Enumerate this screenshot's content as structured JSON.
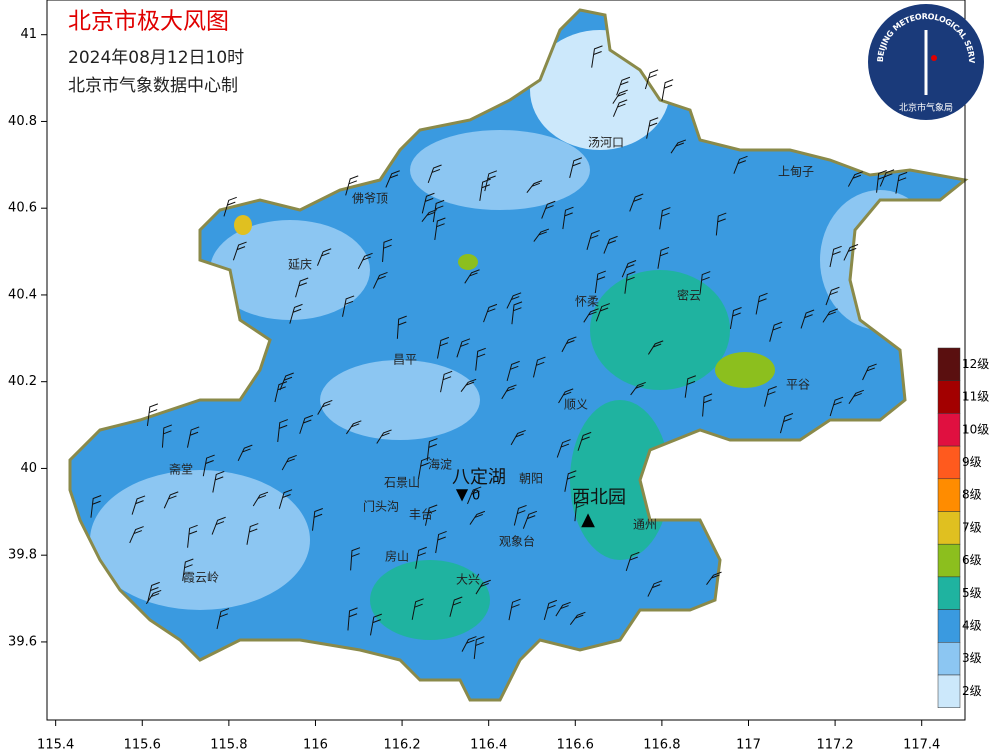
{
  "header": {
    "title": "北京市极大风图",
    "subtitle": "2024年08月12日10时",
    "agency": "北京市气象数据中心制"
  },
  "logo": {
    "ring": "BEIJING METEOROLOGICAL SERVICE",
    "name": "北京市气象局"
  },
  "map": {
    "xlim": [
      115.38,
      117.5
    ],
    "ylim": [
      39.42,
      41.08
    ],
    "xticks": [
      115.4,
      115.6,
      115.8,
      116,
      116.2,
      116.4,
      116.6,
      116.8,
      117,
      117.2,
      117.4
    ],
    "yticks": [
      39.6,
      39.8,
      40,
      40.2,
      40.4,
      40.6,
      40.8,
      41
    ]
  },
  "places": [
    "汤河口",
    "上甸子",
    "佛爷顶",
    "延庆",
    "怀柔",
    "密云",
    "昌平",
    "顺义",
    "平谷",
    "海淀",
    "朝阳",
    "石景山",
    "门头沟",
    "丰台",
    "通州",
    "观象台",
    "房山",
    "大兴",
    "斋堂",
    "霞云岭"
  ],
  "stations": [
    {
      "name": "八定湖",
      "value": "0"
    },
    {
      "name": "西北园"
    }
  ],
  "legend": [
    {
      "label": "12级",
      "color": "#5a0f0f"
    },
    {
      "label": "11级",
      "color": "#a30000"
    },
    {
      "label": "10级",
      "color": "#e01040"
    },
    {
      "label": "9级",
      "color": "#ff5a1e"
    },
    {
      "label": "8级",
      "color": "#ff8c00"
    },
    {
      "label": "7级",
      "color": "#e0c020"
    },
    {
      "label": "6级",
      "color": "#8cbf1e"
    },
    {
      "label": "5级",
      "color": "#1fb3a0"
    },
    {
      "label": "4级",
      "color": "#3a9ae0"
    },
    {
      "label": "3级",
      "color": "#8cc6f2"
    },
    {
      "label": "2级",
      "color": "#cce8fb"
    }
  ]
}
